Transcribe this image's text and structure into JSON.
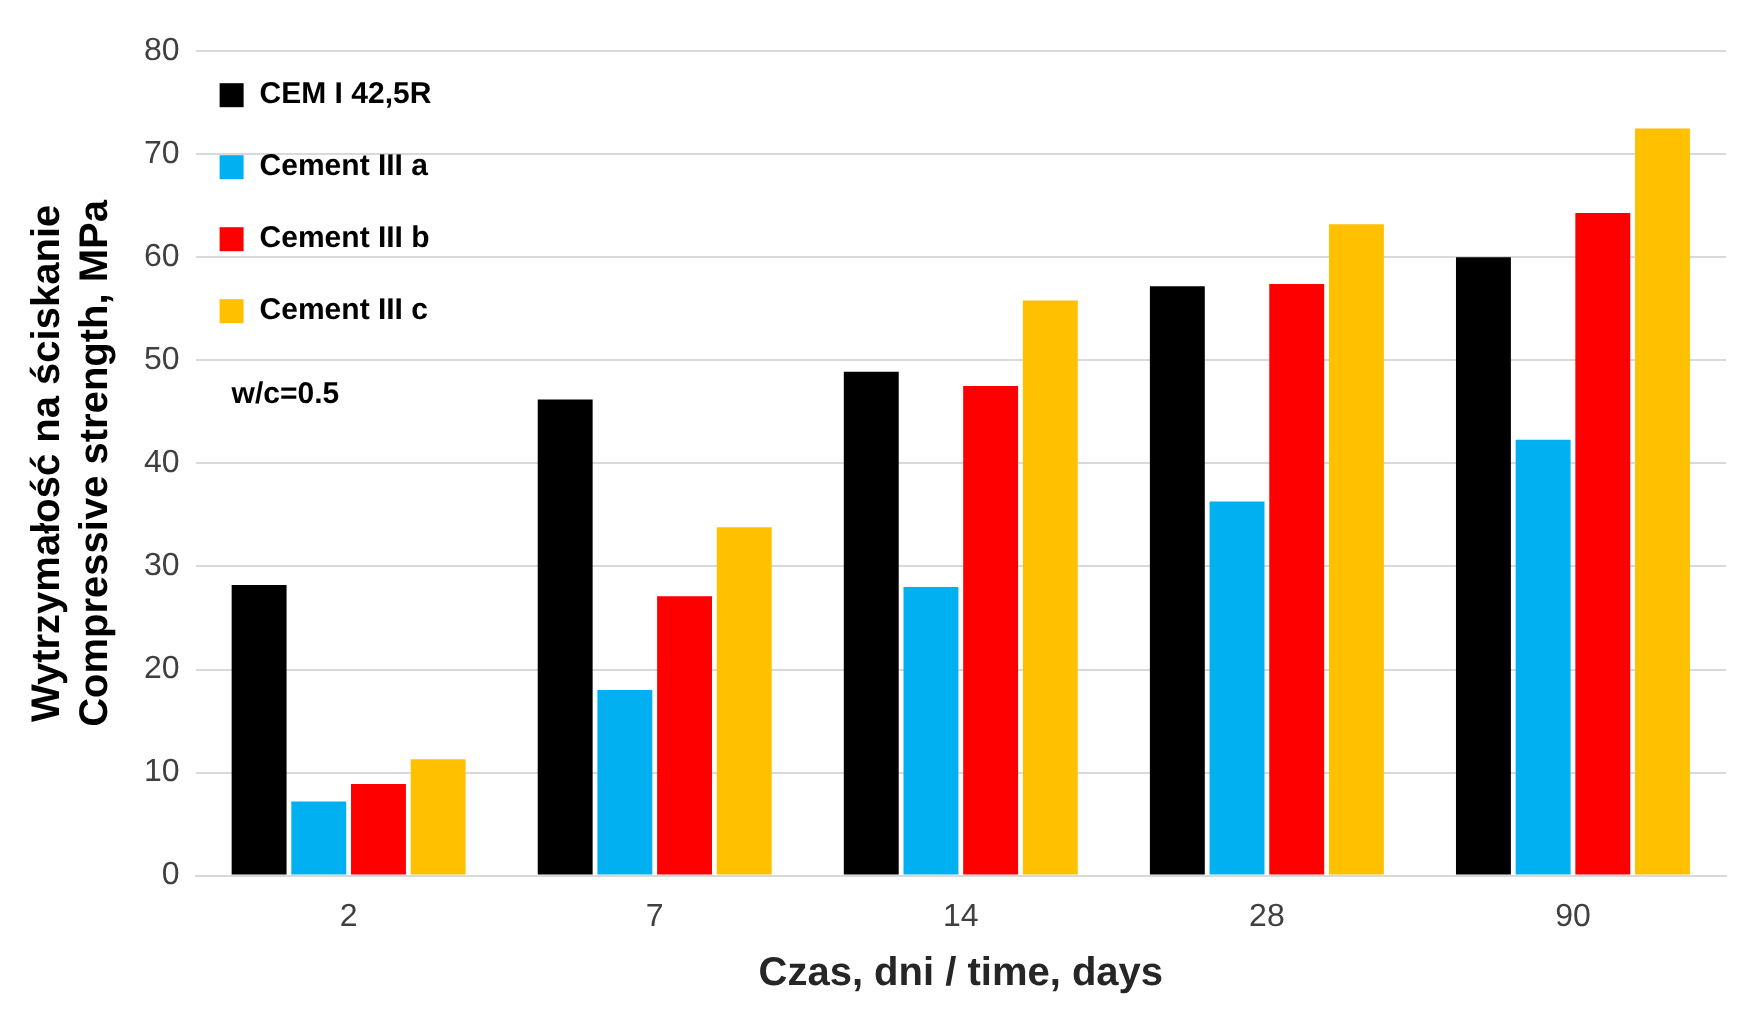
{
  "chart_data": {
    "type": "bar",
    "xlabel": "Czas, dni / time, days",
    "ylabel": "Wytrzymałość na ściskanie\nCompressive strength, MPa",
    "categories": [
      "2",
      "7",
      "14",
      "28",
      "90"
    ],
    "series": [
      {
        "name": "CEM I 42,5R",
        "color": "#000000",
        "values": [
          28.2,
          46.2,
          48.9,
          57.2,
          60
        ]
      },
      {
        "name": "Cement III a",
        "color": "#00b0f0",
        "values": [
          7.2,
          18,
          28,
          36.3,
          42.3
        ]
      },
      {
        "name": "Cement III b",
        "color": "#ff0000",
        "values": [
          8.9,
          27.1,
          47.5,
          57.4,
          64.3
        ]
      },
      {
        "name": "Cement III c",
        "color": "#ffc000",
        "values": [
          11.3,
          33.8,
          55.8,
          63.2,
          72.5
        ]
      }
    ],
    "annotations": [
      "w/c=0.5"
    ],
    "ylim": [
      0,
      80
    ],
    "yticks": [
      0,
      10,
      20,
      30,
      40,
      50,
      60,
      70,
      80
    ],
    "grid": "y",
    "legend": "top left"
  }
}
